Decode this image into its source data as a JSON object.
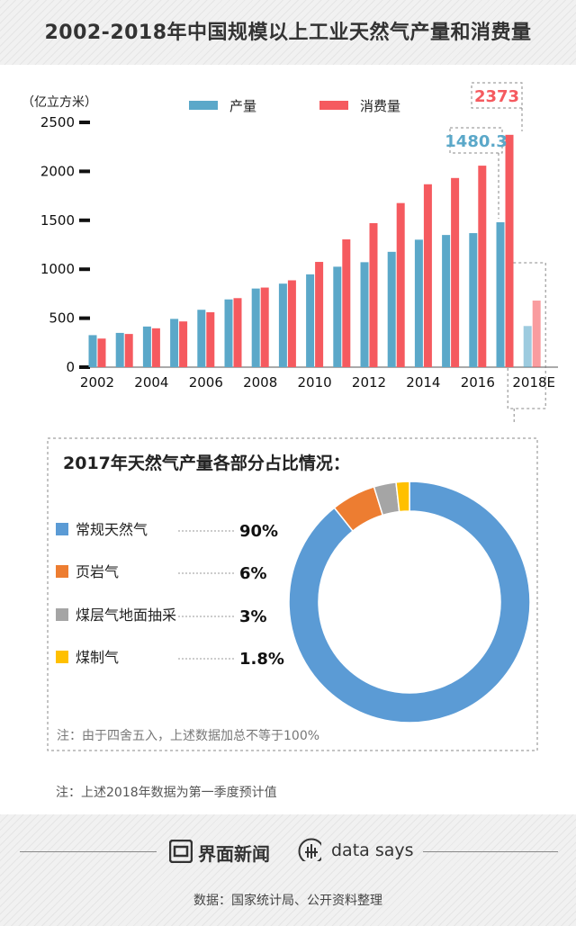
{
  "title": "2002-2018年中国规模以上工业天然气产量和消费量",
  "chart_data": [
    {
      "type": "bar",
      "title": "",
      "ylabel": "（亿立方米）",
      "xlabel": "",
      "ylim": [
        0,
        2500
      ],
      "yticks": [
        0,
        500,
        1000,
        1500,
        2000,
        2500
      ],
      "categories": [
        "2002",
        "2003",
        "2004",
        "2005",
        "2006",
        "2007",
        "2008",
        "2009",
        "2010",
        "2011",
        "2012",
        "2013",
        "2014",
        "2015",
        "2016",
        "2017",
        "2018E"
      ],
      "x_tick_labels": [
        "2002",
        "2004",
        "2006",
        "2008",
        "2010",
        "2012",
        "2014",
        "2016",
        "2018E"
      ],
      "legend_position": "top",
      "series": [
        {
          "name": "产量",
          "color": "#5ba8c9",
          "values": [
            327,
            350,
            415,
            493,
            586,
            692,
            803,
            853,
            948,
            1026,
            1072,
            1178,
            1302,
            1350,
            1369,
            1480.3,
            420
          ]
        },
        {
          "name": "消费量",
          "color": "#f55a5f",
          "values": [
            292,
            339,
            397,
            467,
            561,
            705,
            813,
            887,
            1075,
            1305,
            1471,
            1676,
            1868,
            1932,
            2058,
            2373,
            680
          ]
        }
      ],
      "annotations": [
        {
          "label": "1480.3",
          "category": "2017",
          "series": "产量",
          "color": "#5ba8c9"
        },
        {
          "label": "2373",
          "category": "2017",
          "series": "消费量",
          "color": "#f55a5f"
        }
      ]
    },
    {
      "type": "donut",
      "title": "2017年天然气产量各部分占比情况：",
      "slices": [
        {
          "label": "常规天然气",
          "value": 90,
          "display": "90%",
          "color": "#5b9bd5"
        },
        {
          "label": "页岩气",
          "value": 6,
          "display": "6%",
          "color": "#ed7d31"
        },
        {
          "label": "煤层气地面抽采",
          "value": 3,
          "display": "3%",
          "color": "#a5a5a5"
        },
        {
          "label": "煤制气",
          "value": 1.8,
          "display": "1.8%",
          "color": "#ffc000"
        }
      ],
      "note": "注：由于四舍五入，上述数据加总不等于100%"
    }
  ],
  "note_2018": "注：上述2018年数据为第一季度预计值",
  "brand": {
    "name1": "界面新闻",
    "name2": "data says"
  },
  "source": "数据：国家统计局、公开资料整理"
}
